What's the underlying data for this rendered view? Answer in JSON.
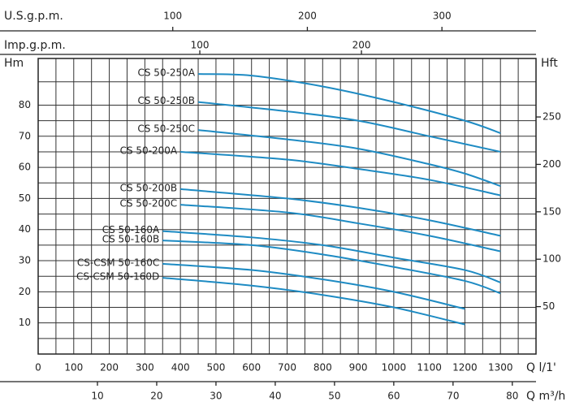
{
  "chart_data": {
    "type": "line",
    "x_label": "Q  l/1'",
    "y_label": "Hm",
    "y2_label": "Hft",
    "xlim": [
      0,
      1400
    ],
    "xticks": [
      0,
      100,
      200,
      300,
      400,
      500,
      600,
      700,
      800,
      900,
      1000,
      1100,
      1200,
      1300
    ],
    "ylim": [
      0,
      95
    ],
    "yticks": [
      10,
      20,
      30,
      40,
      50,
      60,
      70,
      80
    ],
    "y2lim": [
      0,
      311.7
    ],
    "y2ticks": [
      50,
      100,
      150,
      200,
      250
    ],
    "grid": true,
    "minor_divisions": 2,
    "color": "#1e8bc3",
    "us_gpm_axis": {
      "label": "U.S.g.p.m.",
      "xlim": [
        0,
        369.9
      ],
      "xticks": [
        100,
        200,
        300
      ]
    },
    "imp_gpm_axis": {
      "label": "Imp.g.p.m.",
      "xlim": [
        0,
        308
      ],
      "xticks": [
        100,
        200
      ]
    },
    "m3h_axis": {
      "label": "Q  m³/h",
      "xlim": [
        0,
        84
      ],
      "xticks": [
        10,
        20,
        30,
        40,
        50,
        60,
        70,
        80
      ]
    },
    "series": [
      {
        "name": "CS 50-250A",
        "x": [
          450,
          600,
          800,
          1000,
          1200,
          1300
        ],
        "values": [
          90,
          89.5,
          86,
          81,
          75,
          71
        ]
      },
      {
        "name": "CS 50-250B",
        "x": [
          450,
          700,
          900,
          1100,
          1300
        ],
        "values": [
          81,
          78,
          75,
          70,
          65
        ]
      },
      {
        "name": "CS 50-250C",
        "x": [
          450,
          700,
          900,
          1100,
          1200,
          1300
        ],
        "values": [
          72,
          69,
          66,
          61,
          58,
          54
        ]
      },
      {
        "name": "CS 50-200A",
        "x": [
          400,
          700,
          900,
          1100,
          1300
        ],
        "values": [
          65,
          62.5,
          59.5,
          56,
          51
        ]
      },
      {
        "name": "CS 50-200B",
        "x": [
          400,
          700,
          900,
          1100,
          1300
        ],
        "values": [
          53,
          50,
          47,
          43,
          38
        ]
      },
      {
        "name": "CS 50-200C",
        "x": [
          400,
          700,
          900,
          1100,
          1300
        ],
        "values": [
          48,
          45.5,
          42,
          38,
          33
        ]
      },
      {
        "name": "CS 50-160A",
        "x": [
          350,
          600,
          800,
          1000,
          1200,
          1300
        ],
        "values": [
          39.5,
          37.5,
          35,
          31,
          27,
          23
        ]
      },
      {
        "name": "CS 50-160B",
        "x": [
          350,
          600,
          800,
          1000,
          1200,
          1300
        ],
        "values": [
          36.5,
          35,
          32,
          28,
          23.5,
          19.5
        ]
      },
      {
        "name": "CS-CSM 50-160C",
        "x": [
          350,
          600,
          800,
          1000,
          1200
        ],
        "values": [
          29,
          27,
          24,
          20,
          14.5
        ]
      },
      {
        "name": "CS-CSM 50-160D",
        "x": [
          350,
          600,
          800,
          1000,
          1200
        ],
        "values": [
          24.5,
          22,
          19,
          15,
          9.5
        ]
      }
    ]
  }
}
